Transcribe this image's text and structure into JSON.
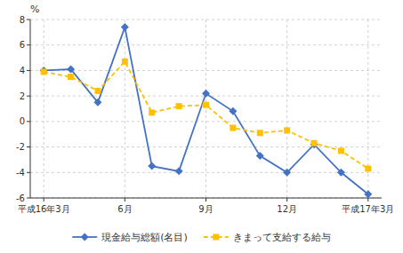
{
  "chart_data": {
    "type": "line",
    "categories": [
      "平成16年3月",
      null,
      null,
      "6月",
      null,
      null,
      "9月",
      null,
      null,
      "12月",
      null,
      null,
      "平成17年3月"
    ],
    "y_label": "%",
    "ylim": [
      -6,
      8
    ],
    "yticks": [
      -6,
      -4,
      -2,
      0,
      2,
      4,
      6,
      8
    ],
    "grid": true,
    "legend": "bottom",
    "series": [
      {
        "name": "現金給与総額(名目)",
        "color": "#4472c4",
        "marker": "diamond",
        "line_style": "solid",
        "values": [
          4.0,
          4.1,
          1.5,
          7.4,
          -3.5,
          -3.9,
          2.2,
          0.8,
          -2.7,
          -4.0,
          -1.8,
          -4.0,
          -5.7
        ]
      },
      {
        "name": "きまって支給する給与",
        "color": "#ffc000",
        "marker": "square",
        "line_style": "dashed",
        "values": [
          3.9,
          3.5,
          2.4,
          4.7,
          0.7,
          1.2,
          1.3,
          -0.5,
          -0.9,
          -0.7,
          -1.7,
          -2.3,
          -3.7
        ]
      }
    ]
  }
}
